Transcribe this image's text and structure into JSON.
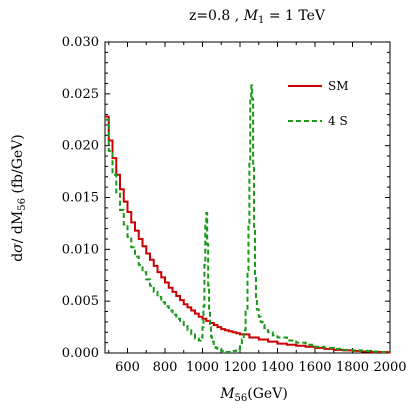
{
  "chart_data": {
    "type": "line",
    "title": "z=0.8 , M₁ = 1  TeV",
    "title_parts": {
      "prefix": "z=0.8 , ",
      "var": "M",
      "sub": "1",
      "suffix": " = 1  TeV"
    },
    "xlabel": "M₅₆ (GeV)",
    "xlabel_parts": {
      "var": "M",
      "sub": "56",
      "suffix": "(GeV)"
    },
    "ylabel": "dσ / dM₅₆ (fb/GeV)",
    "ylabel_parts": {
      "prefix": "d",
      "sigma": "σ",
      "mid": "/ dM",
      "sub": "56",
      "suffix": " (fb/GeV)"
    },
    "xlim": [
      480,
      2000
    ],
    "ylim": [
      0,
      0.03
    ],
    "xticks": [
      600,
      800,
      1000,
      1200,
      1400,
      1600,
      1800,
      2000
    ],
    "yticks": [
      0.0,
      0.005,
      0.01,
      0.015,
      0.02,
      0.025,
      0.03
    ],
    "xtick_labels": [
      "600",
      "800",
      "1000",
      "1200",
      "1400",
      "1600",
      "1800",
      "2000"
    ],
    "ytick_labels": [
      "0.000",
      "0.005",
      "0.010",
      "0.015",
      "0.020",
      "0.025",
      "0.030"
    ],
    "legend_position": "top-right",
    "grid": false,
    "series": [
      {
        "name": "SM",
        "color": "#cc0000",
        "dash": "solid",
        "x": [
          480,
          500,
          520,
          540,
          560,
          580,
          600,
          620,
          640,
          660,
          680,
          700,
          720,
          740,
          760,
          780,
          800,
          820,
          840,
          860,
          880,
          900,
          920,
          940,
          960,
          980,
          1000,
          1020,
          1040,
          1060,
          1080,
          1100,
          1120,
          1140,
          1160,
          1180,
          1200,
          1250,
          1300,
          1350,
          1400,
          1450,
          1500,
          1550,
          1600,
          1650,
          1700,
          1750,
          1800,
          1850,
          1900,
          1950,
          2000
        ],
        "y": [
          0.0228,
          0.0205,
          0.0188,
          0.0172,
          0.0158,
          0.0146,
          0.0136,
          0.0126,
          0.0118,
          0.011,
          0.0103,
          0.0096,
          0.009,
          0.0084,
          0.0078,
          0.0073,
          0.0068,
          0.0063,
          0.0059,
          0.0055,
          0.0051,
          0.0047,
          0.0044,
          0.0041,
          0.0038,
          0.0035,
          0.0033,
          0.0031,
          0.0029,
          0.0027,
          0.0025,
          0.0023,
          0.0022,
          0.0021,
          0.002,
          0.0019,
          0.0018,
          0.0015,
          0.0013,
          0.0011,
          0.0009,
          0.0008,
          0.0007,
          0.0006,
          0.0005,
          0.0004,
          0.0003,
          0.00025,
          0.0002,
          0.00015,
          0.0001,
          8e-05,
          5e-05
        ]
      },
      {
        "name": "4 S",
        "color": "#1a9a1a",
        "dash": "dashed",
        "x": [
          480,
          500,
          520,
          540,
          560,
          580,
          600,
          620,
          640,
          660,
          680,
          700,
          720,
          740,
          760,
          780,
          800,
          820,
          840,
          860,
          880,
          900,
          920,
          940,
          960,
          980,
          990,
          1000,
          1005,
          1010,
          1015,
          1020,
          1025,
          1030,
          1035,
          1040,
          1045,
          1050,
          1060,
          1070,
          1080,
          1100,
          1120,
          1140,
          1160,
          1180,
          1200,
          1210,
          1220,
          1230,
          1240,
          1245,
          1250,
          1255,
          1260,
          1265,
          1270,
          1275,
          1280,
          1285,
          1290,
          1300,
          1310,
          1320,
          1330,
          1340,
          1350,
          1375,
          1400,
          1450,
          1500,
          1550,
          1600,
          1650,
          1700,
          1750,
          1800,
          1850,
          1900,
          1950,
          2000
        ],
        "y": [
          0.0225,
          0.0195,
          0.0172,
          0.0155,
          0.0138,
          0.0124,
          0.0112,
          0.0102,
          0.0093,
          0.0085,
          0.0078,
          0.0071,
          0.0065,
          0.0059,
          0.0054,
          0.0049,
          0.0045,
          0.0041,
          0.0037,
          0.0033,
          0.003,
          0.0026,
          0.0022,
          0.0018,
          0.0014,
          0.0012,
          0.0015,
          0.0025,
          0.0045,
          0.0085,
          0.0125,
          0.0135,
          0.0105,
          0.0065,
          0.004,
          0.0025,
          0.0016,
          0.0011,
          0.0007,
          0.0005,
          0.0004,
          0.0002,
          0.0001,
          0.0001,
          0.0002,
          0.0004,
          0.0008,
          0.0013,
          0.0022,
          0.004,
          0.008,
          0.0125,
          0.0185,
          0.0245,
          0.0258,
          0.0245,
          0.018,
          0.012,
          0.0075,
          0.0052,
          0.0042,
          0.0035,
          0.003,
          0.0027,
          0.0024,
          0.0022,
          0.002,
          0.0017,
          0.0015,
          0.0012,
          0.001,
          0.0008,
          0.0006,
          0.0005,
          0.0004,
          0.0003,
          0.00025,
          0.0002,
          0.00015,
          0.0001,
          8e-05
        ]
      }
    ]
  }
}
